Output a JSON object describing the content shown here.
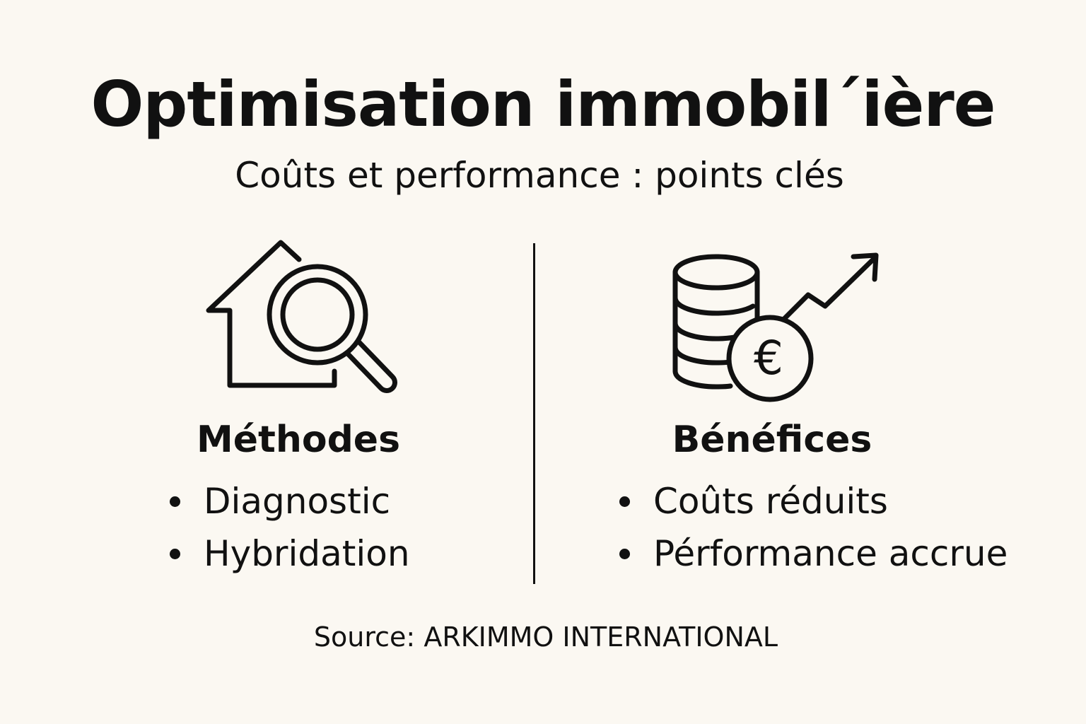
{
  "title": "Optimisation immobil´ière",
  "subtitle": "Coûts et performance : points clés",
  "left_column": {
    "icon": "house-magnifier-icon",
    "heading": "Méthodes",
    "items": [
      "Diagnostic",
      "Hybridation"
    ]
  },
  "right_column": {
    "icon": "coins-euro-growth-icon",
    "euro_symbol": "€",
    "heading": "Bénéfices",
    "items": [
      "Coûts réduits",
      "Pérformance accrue"
    ]
  },
  "source": "Source: ARKIMMO INTERNATIONAL",
  "colors": {
    "background": "#fbf8f2",
    "ink": "#111111"
  }
}
